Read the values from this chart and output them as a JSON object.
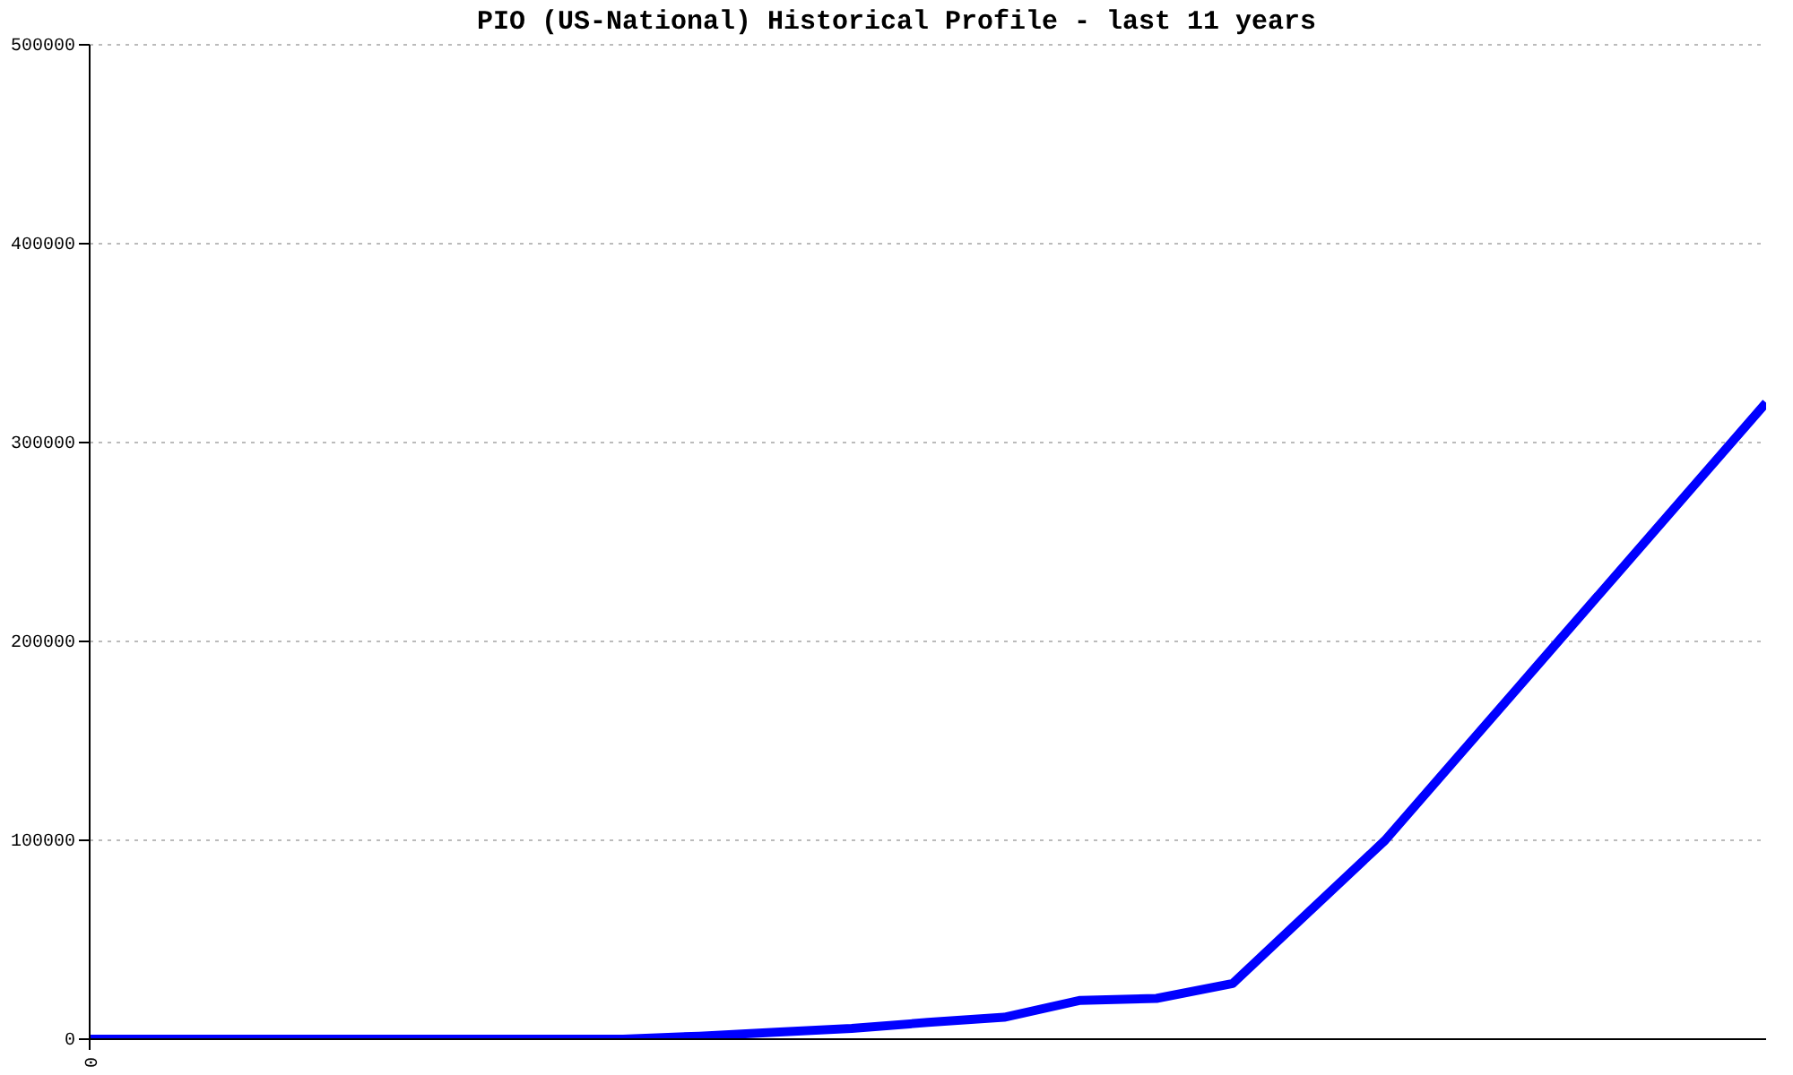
{
  "chart_data": {
    "type": "line",
    "title": "PIO (US-National) Historical Profile - last 11 years",
    "categories": [
      "0",
      null,
      null,
      null,
      null,
      null,
      null,
      null,
      null,
      null,
      null,
      null,
      null,
      null,
      null,
      null,
      null,
      null,
      null,
      null,
      null,
      null,
      null
    ],
    "series": [
      {
        "color": "#0000ff",
        "values": [
          0,
          0,
          0,
          0,
          0,
          0,
          0,
          0,
          1500,
          3500,
          5400,
          8400,
          11000,
          19500,
          20500,
          28000,
          64000,
          100000,
          144000,
          188000,
          232000,
          276000,
          320000
        ]
      }
    ],
    "ylim": [
      0,
      500000
    ],
    "yticks": [
      0,
      100000,
      200000,
      300000,
      400000,
      500000
    ],
    "grid": "y",
    "marker": "none",
    "line_style": "solid"
  }
}
